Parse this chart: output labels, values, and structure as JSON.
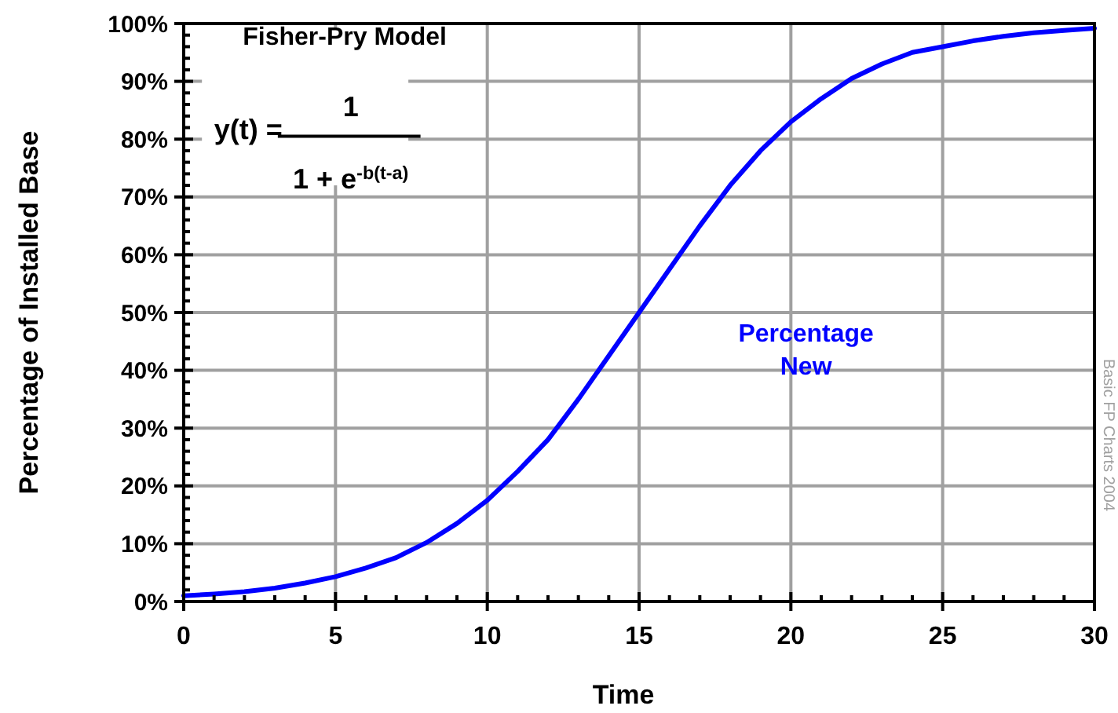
{
  "chart_data": {
    "type": "line",
    "xlabel": "Time",
    "ylabel": "Percentage of Installed Base",
    "annotations": [
      "Fisher-Pry Model",
      "y(t) =",
      "1",
      "1 + e$^{-b(t-a)}$",
      "Basic  FP Charts 2004"
    ],
    "x": [
      0,
      1,
      2,
      3,
      4,
      5,
      6,
      7,
      8,
      9,
      10,
      11,
      12,
      13,
      14,
      15,
      16,
      17,
      18,
      19,
      20,
      21,
      22,
      23,
      24,
      25,
      26,
      27,
      28,
      29,
      30
    ],
    "series": [
      {
        "name": "Percentage New",
        "color": "#0000ff",
        "values": [
          1.0,
          1.3,
          1.7,
          2.3,
          3.2,
          4.3,
          5.8,
          7.6,
          10.2,
          13.5,
          17.5,
          22.5,
          28,
          35,
          42.5,
          50,
          57.5,
          65,
          72,
          78,
          83,
          87,
          90.5,
          93,
          95,
          96,
          97,
          97.8,
          98.4,
          98.8,
          99.2
        ]
      }
    ],
    "xlim": [
      0,
      30
    ],
    "ylim": [
      0,
      100
    ],
    "xticks": [
      0,
      {
        "value": 1,
        "label": null
      },
      {
        "value": 2,
        "label": null
      },
      {
        "value": 3,
        "label": null
      },
      {
        "value": 4,
        "label": null
      },
      5,
      {
        "value": 6,
        "label": null
      },
      {
        "value": 7,
        "label": null
      },
      {
        "value": 8,
        "label": null
      },
      {
        "value": 9,
        "label": null
      },
      10,
      {
        "value": 11,
        "label": null
      },
      {
        "value": 12,
        "label": null
      },
      {
        "value": 13,
        "label": null
      },
      {
        "value": 14,
        "label": null
      },
      15,
      {
        "value": 16,
        "label": null
      },
      {
        "value": 17,
        "label": null
      },
      {
        "value": 18,
        "label": null
      },
      {
        "value": 19,
        "label": null
      },
      20,
      {
        "value": 21,
        "label": null
      },
      {
        "value": 22,
        "label": null
      },
      {
        "value": 23,
        "label": null
      },
      {
        "value": 24,
        "label": null
      },
      25,
      {
        "value": 26,
        "label": null
      },
      {
        "value": 27,
        "label": null
      },
      {
        "value": 28,
        "label": null
      },
      {
        "value": 29,
        "label": null
      },
      30
    ],
    "yticks": [
      {
        "value": 0,
        "label": "0%"
      },
      {
        "value": 2,
        "label": null
      },
      {
        "value": 4,
        "label": null
      },
      {
        "value": 6,
        "label": null
      },
      {
        "value": 8,
        "label": null
      },
      {
        "value": 10,
        "label": "10%"
      },
      {
        "value": 12,
        "label": null
      },
      {
        "value": 14,
        "label": null
      },
      {
        "value": 16,
        "label": null
      },
      {
        "value": 18,
        "label": null
      },
      {
        "value": 20,
        "label": "20%"
      },
      {
        "value": 22,
        "label": null
      },
      {
        "value": 24,
        "label": null
      },
      {
        "value": 26,
        "label": null
      },
      {
        "value": 28,
        "label": null
      },
      {
        "value": 30,
        "label": "30%"
      },
      {
        "value": 32,
        "label": null
      },
      {
        "value": 34,
        "label": null
      },
      {
        "value": 36,
        "label": null
      },
      {
        "value": 38,
        "label": null
      },
      {
        "value": 40,
        "label": "40%"
      },
      {
        "value": 42,
        "label": null
      },
      {
        "value": 44,
        "label": null
      },
      {
        "value": 46,
        "label": null
      },
      {
        "value": 48,
        "label": null
      },
      {
        "value": 50,
        "label": "50%"
      },
      {
        "value": 52,
        "label": null
      },
      {
        "value": 54,
        "label": null
      },
      {
        "value": 56,
        "label": null
      },
      {
        "value": 58,
        "label": null
      },
      {
        "value": 60,
        "label": "60%"
      },
      {
        "value": 62,
        "label": null
      },
      {
        "value": 64,
        "label": null
      },
      {
        "value": 66,
        "label": null
      },
      {
        "value": 68,
        "label": null
      },
      {
        "value": 70,
        "label": "70%"
      },
      {
        "value": 72,
        "label": null
      },
      {
        "value": 74,
        "label": null
      },
      {
        "value": 76,
        "label": null
      },
      {
        "value": 78,
        "label": null
      },
      {
        "value": 80,
        "label": "80%"
      },
      {
        "value": 82,
        "label": null
      },
      {
        "value": 84,
        "label": null
      },
      {
        "value": 86,
        "label": null
      },
      {
        "value": 88,
        "label": null
      },
      {
        "value": 90,
        "label": "90%"
      },
      {
        "value": 92,
        "label": null
      },
      {
        "value": 94,
        "label": null
      },
      {
        "value": 96,
        "label": null
      },
      {
        "value": 98,
        "label": null
      },
      {
        "value": 100,
        "label": "100%"
      }
    ],
    "grid": true,
    "marker": "none",
    "line_style": "solid"
  }
}
